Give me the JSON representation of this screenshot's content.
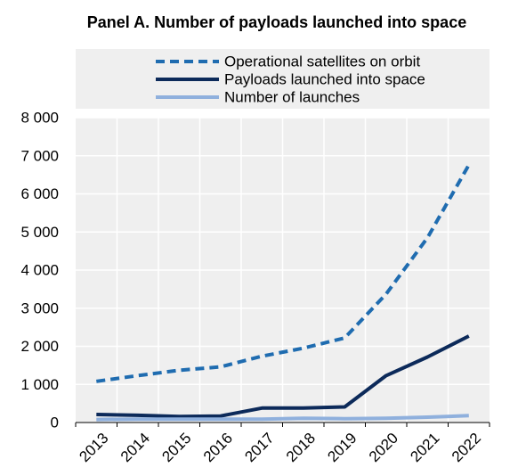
{
  "chart_data": {
    "type": "line",
    "title": "Panel A. Number of payloads launched into space",
    "xlabel": "",
    "ylabel": "",
    "x": [
      "2013",
      "2014",
      "2015",
      "2016",
      "2017",
      "2018",
      "2019",
      "2020",
      "2021",
      "2022"
    ],
    "ylim": [
      0,
      8000
    ],
    "yticks": [
      0,
      1000,
      2000,
      3000,
      4000,
      5000,
      6000,
      7000,
      8000
    ],
    "ytick_labels": [
      "0",
      "1 000",
      "2 000",
      "3 000",
      "4 000",
      "5 000",
      "6 000",
      "7 000",
      "8 000"
    ],
    "grid": true,
    "legend_position": "top",
    "series": [
      {
        "name": "Operational satellites on orbit",
        "style": "dashed",
        "color": "#1f6cb0",
        "values": [
          1080,
          1230,
          1370,
          1460,
          1740,
          1950,
          2220,
          3370,
          4850,
          6760
        ]
      },
      {
        "name": "Payloads launched into space",
        "style": "solid",
        "color": "#0c2a5a",
        "values": [
          210,
          190,
          160,
          170,
          380,
          380,
          410,
          1230,
          1720,
          2270
        ]
      },
      {
        "name": "Number of launches",
        "style": "solid",
        "color": "#8fb0dd",
        "values": [
          80,
          90,
          90,
          90,
          90,
          110,
          100,
          110,
          140,
          180
        ]
      }
    ],
    "colors": {
      "plot_background": "#efefef",
      "grid": "#ffffff"
    }
  }
}
